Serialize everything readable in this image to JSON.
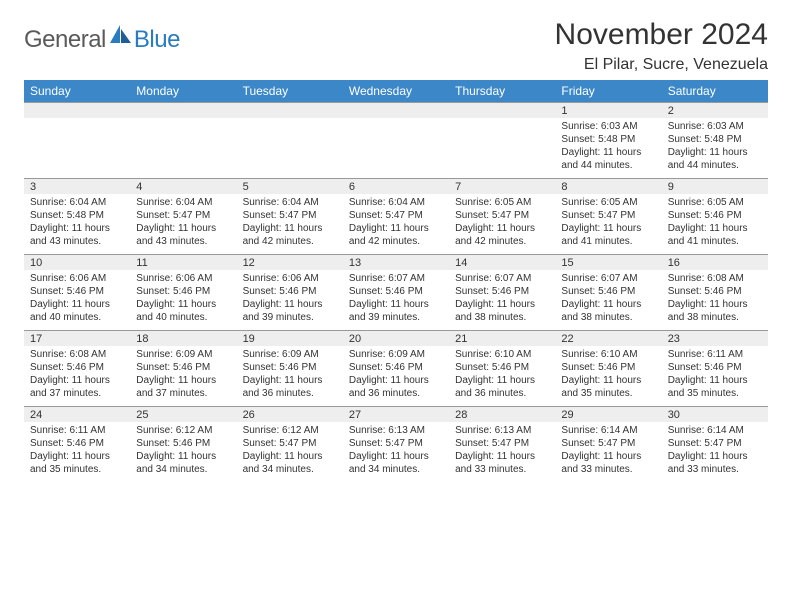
{
  "logo": {
    "general": "General",
    "blue": "Blue"
  },
  "title": "November 2024",
  "location": "El Pilar, Sucre, Venezuela",
  "colors": {
    "header_bg": "#3b87c8",
    "header_text": "#ffffff",
    "daynum_bg": "#eeeeee",
    "daynum_border": "#999999",
    "body_text": "#333333",
    "logo_gray": "#5a5a5a",
    "logo_blue": "#2a7bbf",
    "page_bg": "#ffffff"
  },
  "fonts": {
    "title_size": 30,
    "location_size": 16,
    "dow_size": 12,
    "daynum_size": 11,
    "data_size": 10
  },
  "days_of_week": [
    "Sunday",
    "Monday",
    "Tuesday",
    "Wednesday",
    "Thursday",
    "Friday",
    "Saturday"
  ],
  "weeks": [
    [
      null,
      null,
      null,
      null,
      null,
      {
        "n": "1",
        "sr": "Sunrise: 6:03 AM",
        "ss": "Sunset: 5:48 PM",
        "dl1": "Daylight: 11 hours",
        "dl2": "and 44 minutes."
      },
      {
        "n": "2",
        "sr": "Sunrise: 6:03 AM",
        "ss": "Sunset: 5:48 PM",
        "dl1": "Daylight: 11 hours",
        "dl2": "and 44 minutes."
      }
    ],
    [
      {
        "n": "3",
        "sr": "Sunrise: 6:04 AM",
        "ss": "Sunset: 5:48 PM",
        "dl1": "Daylight: 11 hours",
        "dl2": "and 43 minutes."
      },
      {
        "n": "4",
        "sr": "Sunrise: 6:04 AM",
        "ss": "Sunset: 5:47 PM",
        "dl1": "Daylight: 11 hours",
        "dl2": "and 43 minutes."
      },
      {
        "n": "5",
        "sr": "Sunrise: 6:04 AM",
        "ss": "Sunset: 5:47 PM",
        "dl1": "Daylight: 11 hours",
        "dl2": "and 42 minutes."
      },
      {
        "n": "6",
        "sr": "Sunrise: 6:04 AM",
        "ss": "Sunset: 5:47 PM",
        "dl1": "Daylight: 11 hours",
        "dl2": "and 42 minutes."
      },
      {
        "n": "7",
        "sr": "Sunrise: 6:05 AM",
        "ss": "Sunset: 5:47 PM",
        "dl1": "Daylight: 11 hours",
        "dl2": "and 42 minutes."
      },
      {
        "n": "8",
        "sr": "Sunrise: 6:05 AM",
        "ss": "Sunset: 5:47 PM",
        "dl1": "Daylight: 11 hours",
        "dl2": "and 41 minutes."
      },
      {
        "n": "9",
        "sr": "Sunrise: 6:05 AM",
        "ss": "Sunset: 5:46 PM",
        "dl1": "Daylight: 11 hours",
        "dl2": "and 41 minutes."
      }
    ],
    [
      {
        "n": "10",
        "sr": "Sunrise: 6:06 AM",
        "ss": "Sunset: 5:46 PM",
        "dl1": "Daylight: 11 hours",
        "dl2": "and 40 minutes."
      },
      {
        "n": "11",
        "sr": "Sunrise: 6:06 AM",
        "ss": "Sunset: 5:46 PM",
        "dl1": "Daylight: 11 hours",
        "dl2": "and 40 minutes."
      },
      {
        "n": "12",
        "sr": "Sunrise: 6:06 AM",
        "ss": "Sunset: 5:46 PM",
        "dl1": "Daylight: 11 hours",
        "dl2": "and 39 minutes."
      },
      {
        "n": "13",
        "sr": "Sunrise: 6:07 AM",
        "ss": "Sunset: 5:46 PM",
        "dl1": "Daylight: 11 hours",
        "dl2": "and 39 minutes."
      },
      {
        "n": "14",
        "sr": "Sunrise: 6:07 AM",
        "ss": "Sunset: 5:46 PM",
        "dl1": "Daylight: 11 hours",
        "dl2": "and 38 minutes."
      },
      {
        "n": "15",
        "sr": "Sunrise: 6:07 AM",
        "ss": "Sunset: 5:46 PM",
        "dl1": "Daylight: 11 hours",
        "dl2": "and 38 minutes."
      },
      {
        "n": "16",
        "sr": "Sunrise: 6:08 AM",
        "ss": "Sunset: 5:46 PM",
        "dl1": "Daylight: 11 hours",
        "dl2": "and 38 minutes."
      }
    ],
    [
      {
        "n": "17",
        "sr": "Sunrise: 6:08 AM",
        "ss": "Sunset: 5:46 PM",
        "dl1": "Daylight: 11 hours",
        "dl2": "and 37 minutes."
      },
      {
        "n": "18",
        "sr": "Sunrise: 6:09 AM",
        "ss": "Sunset: 5:46 PM",
        "dl1": "Daylight: 11 hours",
        "dl2": "and 37 minutes."
      },
      {
        "n": "19",
        "sr": "Sunrise: 6:09 AM",
        "ss": "Sunset: 5:46 PM",
        "dl1": "Daylight: 11 hours",
        "dl2": "and 36 minutes."
      },
      {
        "n": "20",
        "sr": "Sunrise: 6:09 AM",
        "ss": "Sunset: 5:46 PM",
        "dl1": "Daylight: 11 hours",
        "dl2": "and 36 minutes."
      },
      {
        "n": "21",
        "sr": "Sunrise: 6:10 AM",
        "ss": "Sunset: 5:46 PM",
        "dl1": "Daylight: 11 hours",
        "dl2": "and 36 minutes."
      },
      {
        "n": "22",
        "sr": "Sunrise: 6:10 AM",
        "ss": "Sunset: 5:46 PM",
        "dl1": "Daylight: 11 hours",
        "dl2": "and 35 minutes."
      },
      {
        "n": "23",
        "sr": "Sunrise: 6:11 AM",
        "ss": "Sunset: 5:46 PM",
        "dl1": "Daylight: 11 hours",
        "dl2": "and 35 minutes."
      }
    ],
    [
      {
        "n": "24",
        "sr": "Sunrise: 6:11 AM",
        "ss": "Sunset: 5:46 PM",
        "dl1": "Daylight: 11 hours",
        "dl2": "and 35 minutes."
      },
      {
        "n": "25",
        "sr": "Sunrise: 6:12 AM",
        "ss": "Sunset: 5:46 PM",
        "dl1": "Daylight: 11 hours",
        "dl2": "and 34 minutes."
      },
      {
        "n": "26",
        "sr": "Sunrise: 6:12 AM",
        "ss": "Sunset: 5:47 PM",
        "dl1": "Daylight: 11 hours",
        "dl2": "and 34 minutes."
      },
      {
        "n": "27",
        "sr": "Sunrise: 6:13 AM",
        "ss": "Sunset: 5:47 PM",
        "dl1": "Daylight: 11 hours",
        "dl2": "and 34 minutes."
      },
      {
        "n": "28",
        "sr": "Sunrise: 6:13 AM",
        "ss": "Sunset: 5:47 PM",
        "dl1": "Daylight: 11 hours",
        "dl2": "and 33 minutes."
      },
      {
        "n": "29",
        "sr": "Sunrise: 6:14 AM",
        "ss": "Sunset: 5:47 PM",
        "dl1": "Daylight: 11 hours",
        "dl2": "and 33 minutes."
      },
      {
        "n": "30",
        "sr": "Sunrise: 6:14 AM",
        "ss": "Sunset: 5:47 PM",
        "dl1": "Daylight: 11 hours",
        "dl2": "and 33 minutes."
      }
    ]
  ]
}
